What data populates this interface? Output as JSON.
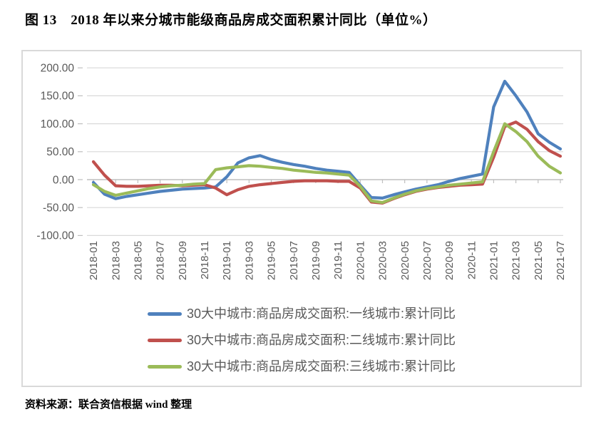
{
  "page": {
    "title": "图 13　2018 年以来分城市能级商品房成交面积累计同比（单位%）",
    "source": "资料来源：联合资信根据 wind 整理"
  },
  "chart_data": {
    "type": "line",
    "title": "2018 年以来分城市能级商品房成交面积累计同比（单位%）",
    "xlabel": "",
    "ylabel": "",
    "ylim": [
      -100,
      200
    ],
    "grid": "horizontal",
    "legend_position": "bottom",
    "y_ticks": [
      "200.00",
      "150.00",
      "100.00",
      "50.00",
      "0.00",
      "-50.00",
      "-100.00"
    ],
    "x_ticks": [
      "2018-01",
      "2018-03",
      "2018-05",
      "2018-07",
      "2018-09",
      "2018-11",
      "2019-01",
      "2019-03",
      "2019-05",
      "2019-07",
      "2019-09",
      "2019-11",
      "2020-01",
      "2020-03",
      "2020-05",
      "2020-07",
      "2020-09",
      "2020-11",
      "2021-01",
      "2021-03",
      "2021-05",
      "2021-07"
    ],
    "x_months": [
      "2018-01",
      "2018-02",
      "2018-03",
      "2018-04",
      "2018-05",
      "2018-06",
      "2018-07",
      "2018-08",
      "2018-09",
      "2018-10",
      "2018-11",
      "2018-12",
      "2019-01",
      "2019-02",
      "2019-03",
      "2019-04",
      "2019-05",
      "2019-06",
      "2019-07",
      "2019-08",
      "2019-09",
      "2019-10",
      "2019-11",
      "2019-12",
      "2020-01",
      "2020-02",
      "2020-03",
      "2020-04",
      "2020-05",
      "2020-06",
      "2020-07",
      "2020-08",
      "2020-09",
      "2020-10",
      "2020-11",
      "2020-12",
      "2021-01",
      "2021-02",
      "2021-03",
      "2021-04",
      "2021-05",
      "2021-06",
      "2021-07"
    ],
    "series": [
      {
        "name": "30大中城市:商品房成交面积:一线城市:累计同比",
        "color": "#4F81BD",
        "values": [
          -5,
          -26,
          -34,
          -30,
          -27,
          -24,
          -21,
          -19,
          -17,
          -16,
          -15,
          -13,
          5,
          30,
          39,
          43,
          36,
          31,
          27,
          24,
          20,
          17,
          15,
          13,
          -10,
          -32,
          -33,
          -27,
          -22,
          -17,
          -13,
          -9,
          -3,
          2,
          6,
          10,
          130,
          176,
          150,
          121,
          82,
          67,
          55
        ]
      },
      {
        "name": "30大中城市:商品房成交面积:二线城市:累计同比",
        "color": "#C0504D",
        "values": [
          32,
          8,
          -11,
          -12,
          -12,
          -11,
          -10,
          -10,
          -11,
          -10,
          -9,
          -15,
          -27,
          -18,
          -12,
          -9,
          -7,
          -5,
          -3,
          -2,
          -2,
          -2,
          -3,
          -3,
          -15,
          -40,
          -42,
          -34,
          -27,
          -21,
          -17,
          -14,
          -12,
          -10,
          -9,
          -8,
          40,
          95,
          103,
          90,
          68,
          52,
          42
        ]
      },
      {
        "name": "30大中城市:商品房成交面积:三线城市:累计同比",
        "color": "#9BBB59",
        "values": [
          -9,
          -21,
          -28,
          -24,
          -20,
          -16,
          -13,
          -11,
          -10,
          -8,
          -7,
          18,
          21,
          23,
          25,
          24,
          22,
          20,
          17,
          15,
          13,
          12,
          10,
          8,
          -12,
          -38,
          -41,
          -33,
          -26,
          -20,
          -16,
          -13,
          -10,
          -8,
          -6,
          -4,
          50,
          100,
          86,
          68,
          42,
          24,
          12
        ]
      }
    ],
    "colors": {
      "grid": "#D9D9D9",
      "axis": "#BFBFBF",
      "label": "#595959",
      "legend_text": "#595959"
    }
  }
}
